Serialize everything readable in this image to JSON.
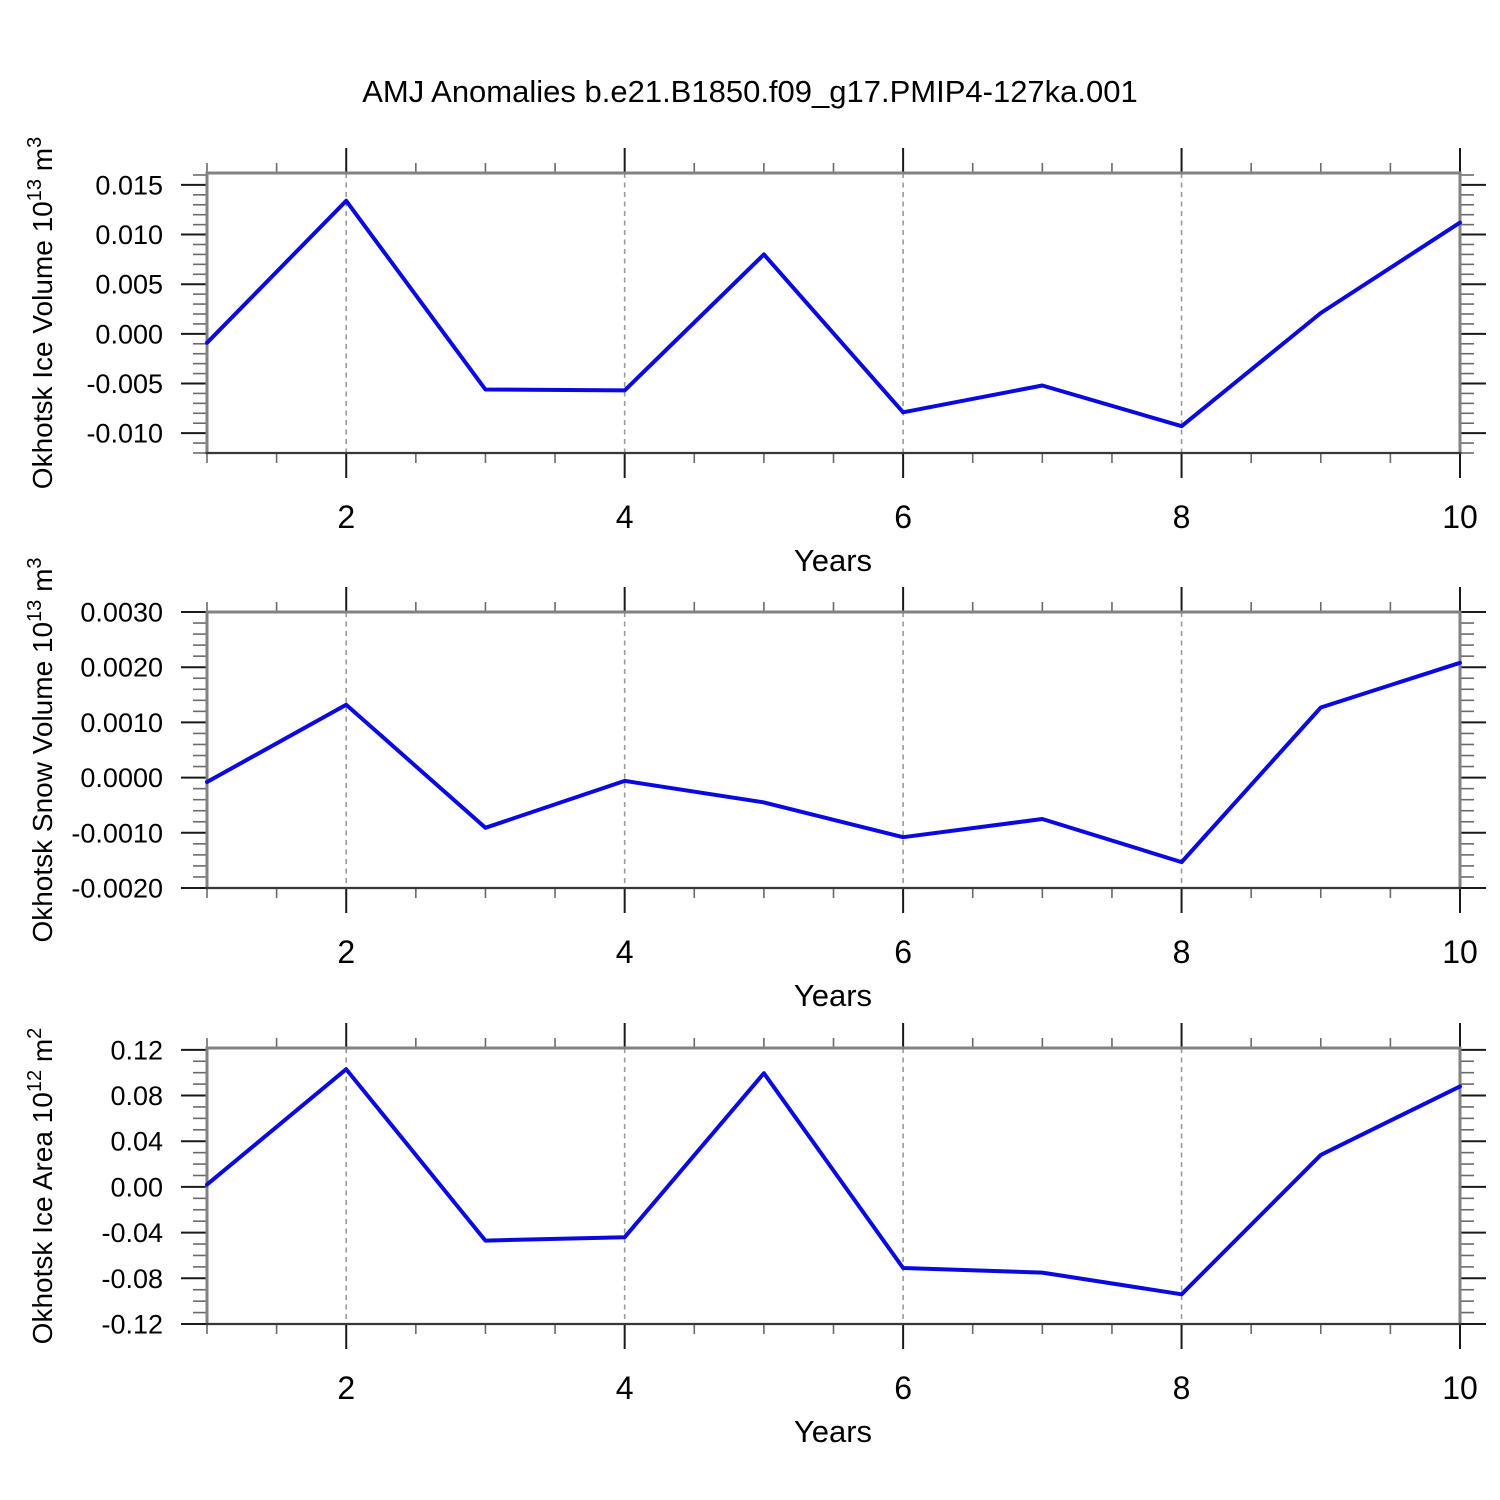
{
  "title": "AMJ Anomalies b.e21.B1850.f09_g17.PMIP4-127ka.001",
  "colors": {
    "background": "#FFFFFF",
    "line": "#0A0AE0",
    "grid": "#9A9A9A",
    "axis_frame": "#828282",
    "axis_bottom": "#383838",
    "tick_major": "#1A1A1A",
    "tick_minor": "#6A6A6A",
    "text": "#000000"
  },
  "chart_data": [
    {
      "id": "ice-volume",
      "type": "line",
      "ylabel": "Okhotsk Ice Volume 10^13 m^3",
      "ylabel_parts": {
        "main": "Okhotsk Ice Volume 10",
        "exponent": "13",
        "unit": " m",
        "unit_exponent": "3"
      },
      "xlabel": "Years",
      "x": [
        1,
        2,
        3,
        4,
        5,
        6,
        7,
        8,
        9,
        10
      ],
      "values": [
        -0.0009,
        0.0134,
        -0.0056,
        -0.0057,
        0.008,
        -0.0079,
        -0.0052,
        -0.0093,
        0.0021,
        0.0112
      ],
      "xlim": [
        1,
        10
      ],
      "ylim": [
        -0.012,
        0.0162
      ],
      "xticks": {
        "labels": [
          "2",
          "4",
          "6",
          "8",
          "10"
        ],
        "values": [
          2,
          4,
          6,
          8,
          10
        ]
      },
      "xminor_step": 0.5,
      "grid_x": [
        2,
        4,
        6,
        8
      ],
      "yticks": {
        "labels": [
          "0.015",
          "0.010",
          "0.005",
          "0.000",
          "-0.005",
          "-0.010"
        ],
        "values": [
          0.015,
          0.01,
          0.005,
          0.0,
          -0.005,
          -0.01
        ]
      },
      "yminor_step": 0.001,
      "grid_on": "x-dashed"
    },
    {
      "id": "snow-volume",
      "type": "line",
      "ylabel": "Okhotsk Snow Volume 10^13 m^3",
      "ylabel_parts": {
        "main": "Okhotsk Snow Volume 10",
        "exponent": "13",
        "unit": " m",
        "unit_exponent": "3"
      },
      "xlabel": "Years",
      "x": [
        1,
        2,
        3,
        4,
        5,
        6,
        7,
        8,
        9,
        10
      ],
      "values": [
        -8e-05,
        0.00132,
        -0.00091,
        -6e-05,
        -0.00045,
        -0.00108,
        -0.00075,
        -0.00153,
        0.00127,
        0.00208
      ],
      "xlim": [
        1,
        10
      ],
      "ylim": [
        -0.002,
        0.003
      ],
      "xticks": {
        "labels": [
          "2",
          "4",
          "6",
          "8",
          "10"
        ],
        "values": [
          2,
          4,
          6,
          8,
          10
        ]
      },
      "xminor_step": 0.5,
      "grid_x": [
        2,
        4,
        6,
        8
      ],
      "yticks": {
        "labels": [
          "0.0030",
          "0.0020",
          "0.0010",
          "0.0000",
          "-0.0010",
          "-0.0020"
        ],
        "values": [
          0.003,
          0.002,
          0.001,
          0.0,
          -0.001,
          -0.002
        ]
      },
      "yminor_step": 0.0002,
      "grid_on": "x-dashed"
    },
    {
      "id": "ice-area",
      "type": "line",
      "ylabel": "Okhotsk Ice Area 10^12 m^2",
      "ylabel_parts": {
        "main": "Okhotsk Ice Area 10",
        "exponent": "12",
        "unit": " m",
        "unit_exponent": "2"
      },
      "xlabel": "Years",
      "x": [
        1,
        2,
        3,
        4,
        5,
        6,
        7,
        8,
        9,
        10
      ],
      "values": [
        0.002,
        0.103,
        -0.047,
        -0.044,
        0.0995,
        -0.071,
        -0.075,
        -0.094,
        0.028,
        0.088
      ],
      "xlim": [
        1,
        10
      ],
      "ylim": [
        -0.12,
        0.1216
      ],
      "xticks": {
        "labels": [
          "2",
          "4",
          "6",
          "8",
          "10"
        ],
        "values": [
          2,
          4,
          6,
          8,
          10
        ]
      },
      "xminor_step": 0.5,
      "grid_x": [
        2,
        4,
        6,
        8
      ],
      "yticks": {
        "labels": [
          "0.12",
          "0.08",
          "0.04",
          "0.00",
          "-0.04",
          "-0.08",
          "-0.12"
        ],
        "values": [
          0.12,
          0.08,
          0.04,
          0.0,
          -0.04,
          -0.08,
          -0.12
        ]
      },
      "yminor_step": 0.01,
      "grid_on": "x-dashed"
    }
  ]
}
